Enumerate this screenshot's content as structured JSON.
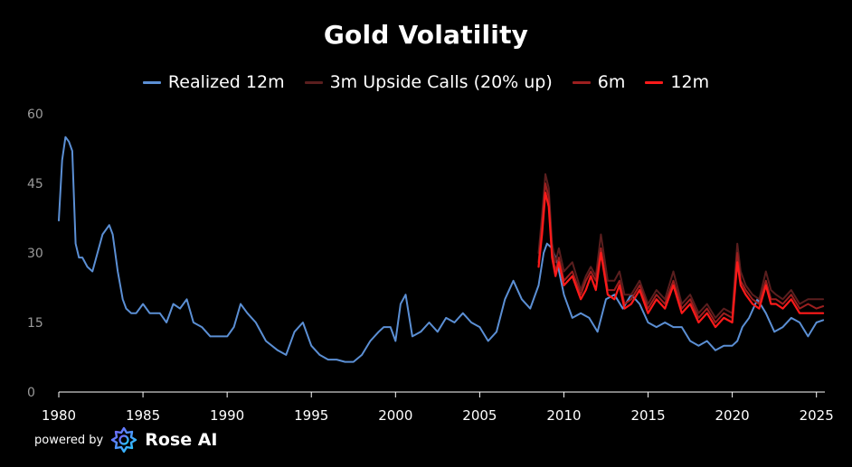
{
  "chart_data": {
    "type": "line",
    "title": "Gold Volatility",
    "xlabel": "",
    "ylabel": "",
    "ylim": [
      0,
      60
    ],
    "xlim": [
      1980,
      2025.5
    ],
    "yticks": [
      "0",
      "15",
      "30",
      "45",
      "60"
    ],
    "xticks": [
      "1980",
      "1985",
      "1990",
      "1995",
      "2000",
      "2005",
      "2010",
      "2015",
      "2020",
      "2025"
    ],
    "legend_position": "top",
    "series": [
      {
        "name": "Realized 12m",
        "color": "#5b8fd4",
        "x": [
          1980.0,
          1980.2,
          1980.4,
          1980.6,
          1980.8,
          1981.0,
          1981.2,
          1981.4,
          1981.7,
          1982.0,
          1982.3,
          1982.6,
          1983.0,
          1983.2,
          1983.5,
          1983.8,
          1984.0,
          1984.3,
          1984.6,
          1985.0,
          1985.4,
          1985.8,
          1986.0,
          1986.4,
          1986.8,
          1987.2,
          1987.6,
          1988.0,
          1988.5,
          1989.0,
          1989.5,
          1990.0,
          1990.4,
          1990.8,
          1991.2,
          1991.7,
          1992.3,
          1993.0,
          1993.5,
          1994.0,
          1994.5,
          1995.0,
          1995.5,
          1996.0,
          1996.5,
          1997.0,
          1997.5,
          1998.0,
          1998.5,
          1999.0,
          1999.3,
          1999.7,
          2000.0,
          2000.3,
          2000.6,
          2001.0,
          2001.5,
          2002.0,
          2002.5,
          2003.0,
          2003.5,
          2004.0,
          2004.5,
          2005.0,
          2005.5,
          2006.0,
          2006.5,
          2007.0,
          2007.5,
          2008.0,
          2008.5,
          2008.8,
          2009.0,
          2009.3,
          2009.6,
          2010.0,
          2010.5,
          2011.0,
          2011.5,
          2012.0,
          2012.5,
          2013.0,
          2013.5,
          2014.0,
          2014.5,
          2015.0,
          2015.5,
          2016.0,
          2016.5,
          2017.0,
          2017.5,
          2018.0,
          2018.5,
          2019.0,
          2019.5,
          2020.0,
          2020.3,
          2020.6,
          2021.0,
          2021.5,
          2022.0,
          2022.5,
          2023.0,
          2023.5,
          2024.0,
          2024.5,
          2025.0,
          2025.4
        ],
        "y": [
          37,
          50,
          55,
          54,
          52,
          32,
          29,
          29,
          27,
          26,
          30,
          34,
          36,
          34,
          26,
          20,
          18,
          17,
          17,
          19,
          17,
          17,
          17,
          15,
          19,
          18,
          20,
          15,
          14,
          12,
          12,
          12,
          14,
          19,
          17,
          15,
          11,
          9,
          8,
          13,
          15,
          10,
          8,
          7,
          7,
          6.5,
          6.5,
          8,
          11,
          13,
          14,
          14,
          11,
          19,
          21,
          12,
          13,
          15,
          13,
          16,
          15,
          17,
          15,
          14,
          11,
          13,
          20,
          24,
          20,
          18,
          23,
          30,
          32,
          31,
          28,
          21,
          16,
          17,
          16,
          13,
          20,
          21,
          18,
          21,
          19,
          15,
          14,
          15,
          14,
          14,
          11,
          10,
          11,
          9,
          10,
          10,
          11,
          14,
          16,
          20,
          17,
          13,
          14,
          16,
          15,
          12,
          15,
          15.5
        ]
      },
      {
        "name": "3m Upside Calls (20% up)",
        "color": "#5a1e1e",
        "x": [
          2008.5,
          2008.7,
          2008.9,
          2009.1,
          2009.3,
          2009.5,
          2009.7,
          2010.0,
          2010.5,
          2011.0,
          2011.3,
          2011.6,
          2011.9,
          2012.2,
          2012.6,
          2013.0,
          2013.3,
          2013.6,
          2014.0,
          2014.5,
          2015.0,
          2015.5,
          2016.0,
          2016.5,
          2017.0,
          2017.5,
          2018.0,
          2018.5,
          2019.0,
          2019.5,
          2020.0,
          2020.3,
          2020.5,
          2020.8,
          2021.2,
          2021.6,
          2022.0,
          2022.3,
          2022.6,
          2023.0,
          2023.5,
          2024.0,
          2024.5,
          2025.0,
          2025.4
        ],
        "y": [
          30,
          38,
          47,
          44,
          32,
          28,
          31,
          26,
          28,
          22,
          25,
          27,
          25,
          34,
          24,
          24,
          26,
          21,
          21,
          24,
          19,
          22,
          20,
          26,
          19,
          21,
          17,
          19,
          16,
          18,
          17,
          32,
          26,
          23,
          21,
          20,
          26,
          22,
          21,
          20,
          22,
          19,
          20,
          20,
          20
        ]
      },
      {
        "name": "6m",
        "color": "#9c1f1f",
        "x": [
          2008.5,
          2008.7,
          2008.9,
          2009.1,
          2009.3,
          2009.5,
          2009.7,
          2010.0,
          2010.5,
          2011.0,
          2011.3,
          2011.6,
          2011.9,
          2012.2,
          2012.6,
          2013.0,
          2013.3,
          2013.6,
          2014.0,
          2014.5,
          2015.0,
          2015.5,
          2016.0,
          2016.5,
          2017.0,
          2017.5,
          2018.0,
          2018.5,
          2019.0,
          2019.5,
          2020.0,
          2020.3,
          2020.5,
          2020.8,
          2021.2,
          2021.6,
          2022.0,
          2022.3,
          2022.6,
          2023.0,
          2023.5,
          2024.0,
          2024.5,
          2025.0,
          2025.4
        ],
        "y": [
          28,
          36,
          45,
          42,
          30,
          26,
          29,
          24,
          26,
          21,
          24,
          26,
          24,
          31,
          22,
          22,
          24,
          19,
          20,
          23,
          18,
          21,
          19,
          24,
          18,
          20,
          16,
          18,
          15,
          17,
          16,
          30,
          24,
          22,
          20,
          19,
          24,
          20,
          20,
          19,
          21,
          18,
          19,
          18,
          18.5
        ]
      },
      {
        "name": "12m",
        "color": "#ff1a1a",
        "x": [
          2008.5,
          2008.7,
          2008.9,
          2009.1,
          2009.3,
          2009.5,
          2009.7,
          2010.0,
          2010.5,
          2011.0,
          2011.3,
          2011.6,
          2011.9,
          2012.2,
          2012.6,
          2013.0,
          2013.3,
          2013.6,
          2014.0,
          2014.5,
          2015.0,
          2015.5,
          2016.0,
          2016.5,
          2017.0,
          2017.5,
          2018.0,
          2018.5,
          2019.0,
          2019.5,
          2020.0,
          2020.3,
          2020.5,
          2020.8,
          2021.2,
          2021.6,
          2022.0,
          2022.3,
          2022.6,
          2023.0,
          2023.5,
          2024.0,
          2024.5,
          2025.0,
          2025.4
        ],
        "y": [
          27,
          34,
          43,
          40,
          29,
          25,
          28,
          23,
          25,
          20,
          22,
          25,
          22,
          30,
          21,
          20,
          23,
          18,
          19,
          22,
          17,
          20,
          18,
          23,
          17,
          19,
          15,
          17,
          14,
          16,
          15,
          28,
          23,
          21,
          19,
          18,
          23,
          19,
          19,
          18,
          20,
          17,
          17,
          17,
          17
        ]
      }
    ]
  },
  "footer": {
    "powered_by": "powered by",
    "brand": "Rose AI",
    "logo_icon": "rose-ai-logo-icon"
  }
}
